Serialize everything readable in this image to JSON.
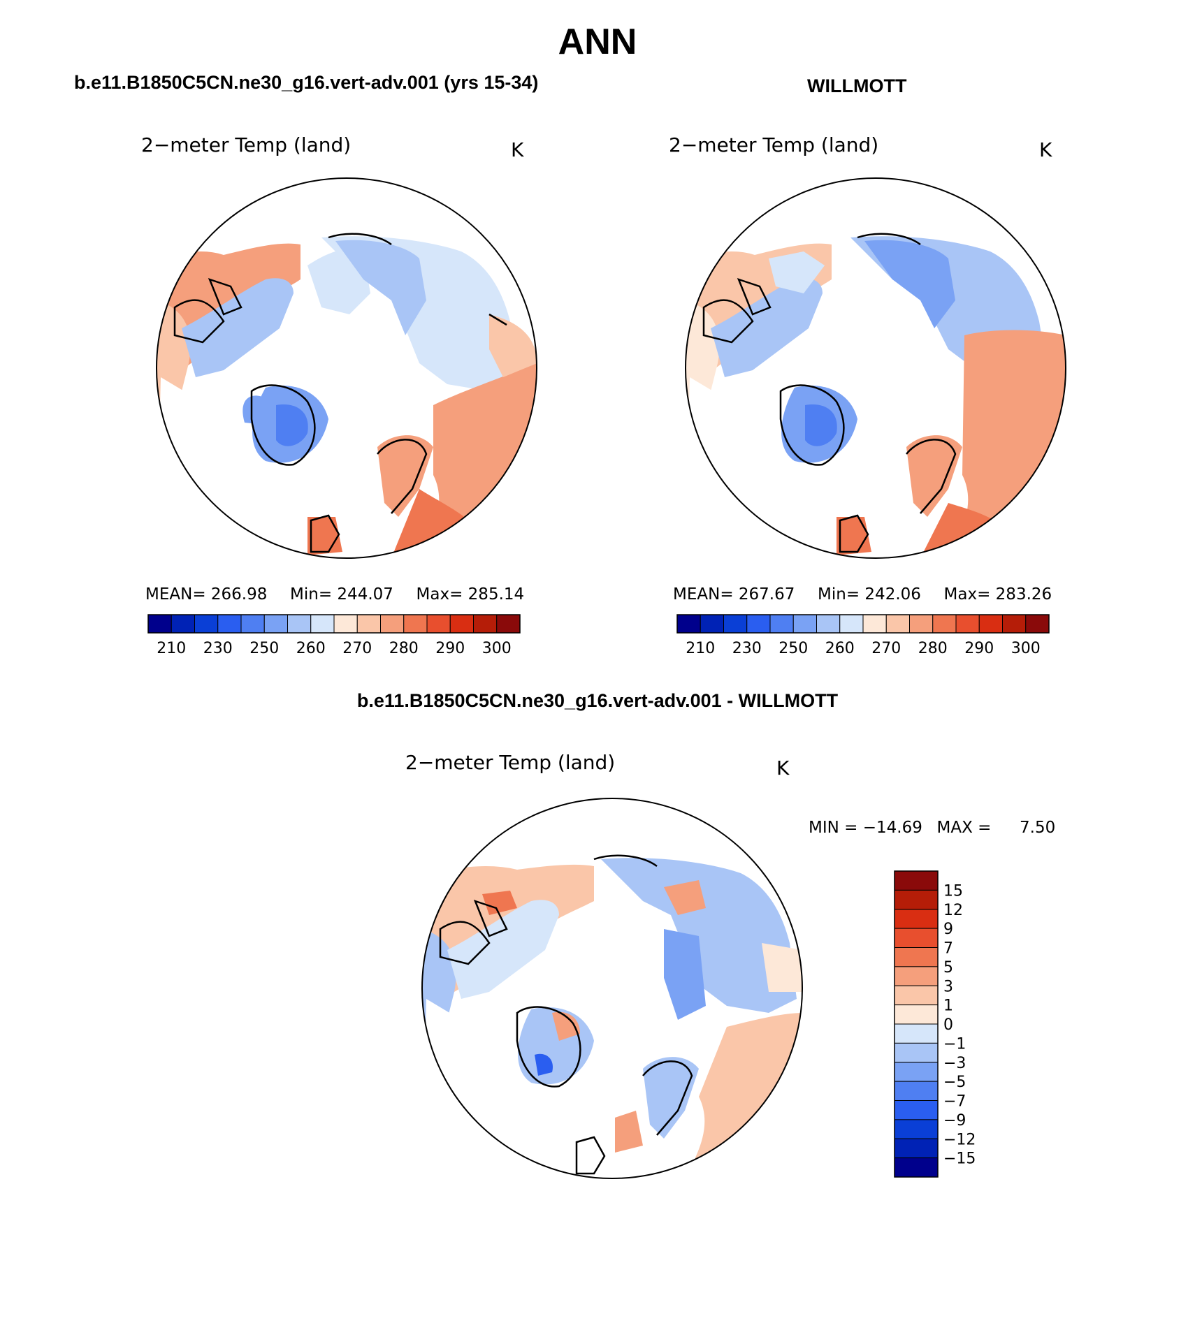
{
  "page_title": "ANN",
  "panels": [
    {
      "heading": "b.e11.B1850C5CN.ne30_g16.vert-adv.001 (yrs 15-34)",
      "variable": "2−meter Temp (land)",
      "units": "K",
      "stats": {
        "mean_label": "MEAN=",
        "mean": "266.98",
        "min_label": "Min=",
        "min": "244.07",
        "max_label": "Max=",
        "max": "285.14"
      }
    },
    {
      "heading": "WILLMOTT",
      "variable": "2−meter Temp (land)",
      "units": "K",
      "stats": {
        "mean_label": "MEAN=",
        "mean": "267.67",
        "min_label": "Min=",
        "min": "242.06",
        "max_label": "Max=",
        "max": "283.26"
      }
    },
    {
      "heading": "b.e11.B1850C5CN.ne30_g16.vert-adv.001 - WILLMOTT",
      "variable": "2−meter Temp (land)",
      "units": "K",
      "minmax": {
        "min_label": "MIN =",
        "min": "−14.69",
        "max_label": "MAX =",
        "max": "7.50"
      }
    }
  ],
  "colorbars": {
    "absolute": {
      "tick_labels": [
        "210",
        "230",
        "250",
        "260",
        "270",
        "280",
        "290",
        "300"
      ],
      "colors": [
        "#00008c",
        "#0022b5",
        "#0a3fd6",
        "#2a5ef0",
        "#4f7ff2",
        "#7aa2f4",
        "#a9c5f6",
        "#d6e6fa",
        "#fde8d8",
        "#fac6a9",
        "#f59f7c",
        "#ef7650",
        "#e84f2e",
        "#d92e12",
        "#b51d08",
        "#8a0a0a"
      ]
    },
    "difference": {
      "levels": [
        "15",
        "12",
        "9",
        "7",
        "5",
        "3",
        "1",
        "0",
        "−1",
        "−3",
        "−5",
        "−7",
        "−9",
        "−12",
        "−15"
      ],
      "colors": [
        "#8a0a0a",
        "#b51d08",
        "#d92e12",
        "#e84f2e",
        "#ef7650",
        "#f59f7c",
        "#fac6a9",
        "#fde8d8",
        "#d6e6fa",
        "#a9c5f6",
        "#7aa2f4",
        "#4f7ff2",
        "#2a5ef0",
        "#0a3fd6",
        "#0022b5",
        "#00008c"
      ]
    }
  }
}
